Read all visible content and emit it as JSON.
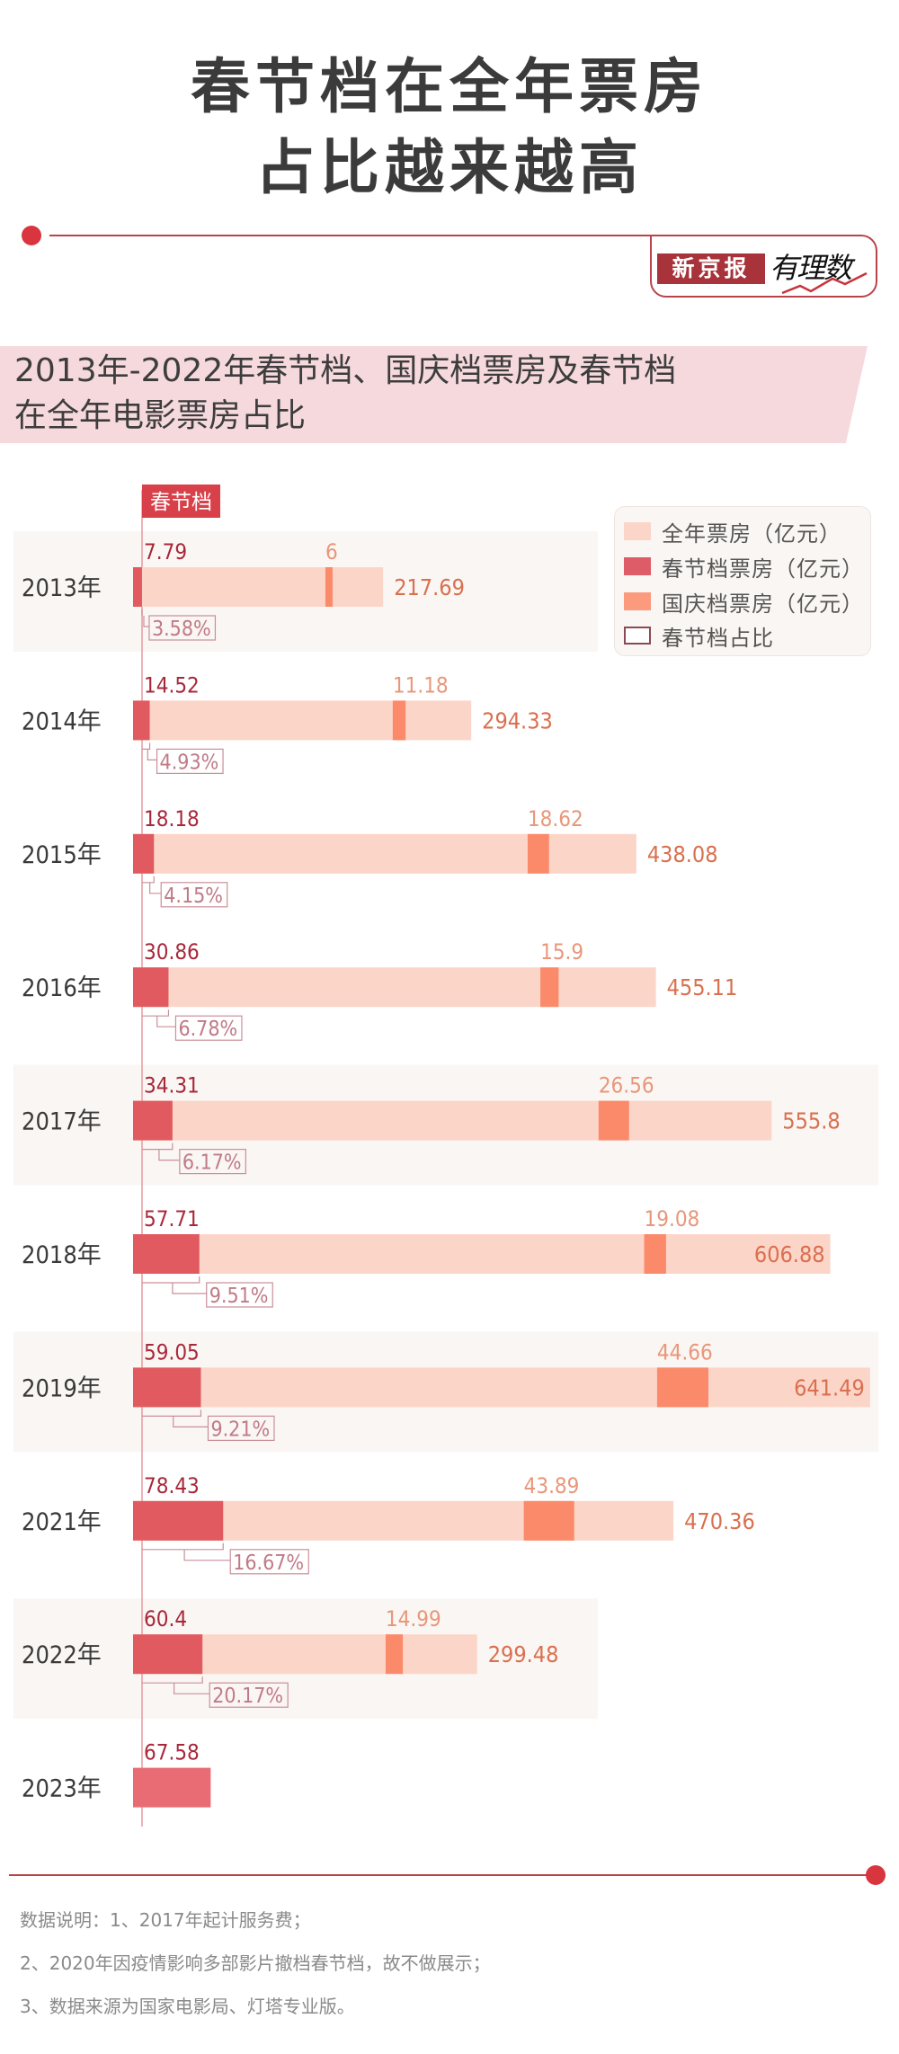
{
  "title": {
    "line1": "春节档在全年票房",
    "line2": "占比越来越高"
  },
  "brand": {
    "newspaper": "新京报",
    "column": "有理数"
  },
  "subtitle": {
    "line1": "2013年-2022年春节档、国庆档票房及春节档",
    "line2": "在全年电影票房占比"
  },
  "colors": {
    "accent": "#d9353f",
    "annual": "#fcd5c9",
    "spring": "#e05a5f",
    "spring_2023": "#e96c74",
    "national": "#fb8a6a",
    "band": "#faf6f3",
    "spring_label": "#a8283a",
    "national_label": "#e8977a",
    "total_label": "#d9704f",
    "pct_label": "#c07a86"
  },
  "chart_data": {
    "type": "bar",
    "title": "2013年-2022年春节档、国庆档票房及春节档在全年电影票房占比",
    "axis_tag": "春节档",
    "unit": "亿元",
    "legend": {
      "placement": "top-right",
      "items": [
        {
          "label": "全年票房（亿元）",
          "key": "annual"
        },
        {
          "label": "春节档票房（亿元）",
          "key": "spring"
        },
        {
          "label": "国庆档票房（亿元）",
          "key": "national"
        },
        {
          "label": "春节档占比",
          "key": "share"
        }
      ]
    },
    "categories": [
      "2013年",
      "2014年",
      "2015年",
      "2016年",
      "2017年",
      "2018年",
      "2019年",
      "2021年",
      "2022年",
      "2023年"
    ],
    "series": [
      {
        "name": "全年票房（亿元）",
        "key": "annual",
        "values": [
          217.69,
          294.33,
          438.08,
          455.11,
          555.8,
          606.88,
          641.49,
          470.36,
          299.48,
          null
        ],
        "labels": [
          "217.69",
          "294.33",
          "438.08",
          "455.11",
          "555.8",
          "606.88",
          "641.49",
          "470.36",
          "299.48",
          null
        ]
      },
      {
        "name": "春节档票房（亿元）",
        "key": "spring",
        "values": [
          7.79,
          14.52,
          18.18,
          30.86,
          34.31,
          57.71,
          59.05,
          78.43,
          60.4,
          67.58
        ],
        "labels": [
          "7.79",
          "14.52",
          "18.18",
          "30.86",
          "34.31",
          "57.71",
          "59.05",
          "78.43",
          "60.4",
          "67.58"
        ]
      },
      {
        "name": "国庆档票房（亿元）",
        "key": "national",
        "values": [
          6,
          11.18,
          18.62,
          15.9,
          26.56,
          19.08,
          44.66,
          43.89,
          14.99,
          null
        ],
        "labels": [
          "6",
          "11.18",
          "18.62",
          "15.9",
          "26.56",
          "19.08",
          "44.66",
          "43.89",
          "14.99",
          null
        ],
        "position_share_of_annual": [
          0.769,
          0.768,
          0.784,
          0.779,
          0.729,
          0.733,
          0.711,
          0.723,
          0.734,
          null
        ]
      },
      {
        "name": "春节档占比",
        "key": "share",
        "values": [
          3.58,
          4.93,
          4.15,
          6.78,
          6.17,
          9.51,
          9.21,
          16.67,
          20.17,
          null
        ],
        "labels": [
          "3.58%",
          "4.93%",
          "4.15%",
          "6.78%",
          "6.17%",
          "9.51%",
          "9.21%",
          "16.67%",
          "20.17%",
          null
        ]
      }
    ],
    "total_label_inside": [
      false,
      false,
      false,
      false,
      false,
      true,
      true,
      false,
      false,
      false
    ],
    "shaded_rows": [
      true,
      false,
      false,
      false,
      true,
      false,
      true,
      false,
      true,
      false
    ],
    "xlim": [
      0,
      660
    ],
    "grid": false
  },
  "notes": [
    "数据说明：1、2017年起计服务费；",
    "2、2020年因疫情影响多部影片撤档春节档，故不做展示；",
    "3、数据来源为国家电影局、灯塔专业版。"
  ]
}
